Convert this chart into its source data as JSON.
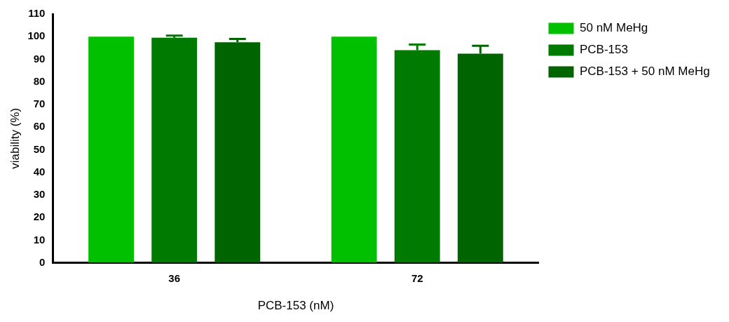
{
  "chart_data": {
    "type": "bar",
    "xlabel": "PCB-153 (nM)",
    "ylabel": "viability (%)",
    "categories": [
      "36",
      "72"
    ],
    "series": [
      {
        "name": "50 nM MeHg",
        "color": "#00c000",
        "values": [
          100,
          100
        ]
      },
      {
        "name": "PCB-153",
        "color": "#007a00",
        "values": [
          99.5,
          94
        ],
        "errors": [
          [
            99.5,
            100.5
          ],
          [
            94,
            96.5
          ]
        ]
      },
      {
        "name": "PCB-153 + 50 nM MeHg",
        "color": "#006400",
        "values": [
          97.5,
          92.5
        ],
        "errors": [
          [
            97.5,
            99
          ],
          [
            92.5,
            96
          ]
        ]
      }
    ],
    "ylim": [
      0,
      110
    ],
    "yticks": [
      0,
      10,
      20,
      30,
      40,
      50,
      60,
      70,
      80,
      90,
      100,
      110
    ],
    "grid": false,
    "legend": "top right"
  }
}
